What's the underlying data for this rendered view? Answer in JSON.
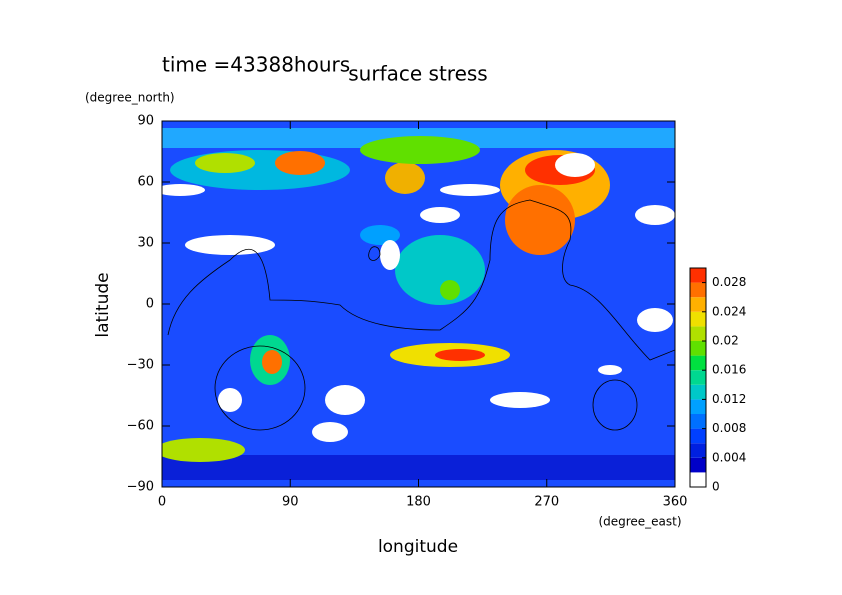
{
  "chart_data": {
    "type": "contour",
    "title": "surface stress",
    "subtitle": "time =43388hours",
    "x_label": "longitude",
    "x_unit": "(degree_east)",
    "y_label": "latitude",
    "y_unit": "(degree_north)",
    "xlim": [
      0,
      360
    ],
    "xticks": [
      0,
      90,
      180,
      270,
      360
    ],
    "ylim": [
      -90,
      90
    ],
    "yticks": [
      {
        "value": -90,
        "label": "−90"
      },
      {
        "value": -60,
        "label": "−60"
      },
      {
        "value": -30,
        "label": "−30"
      },
      0,
      30,
      60,
      90
    ],
    "colorbar": {
      "lim": [
        0,
        0.03
      ],
      "ticks": [
        0,
        0.004,
        0.008,
        0.012,
        0.016,
        0.02,
        0.024,
        0.028
      ],
      "colors": [
        "#ffffff",
        "#0000c8",
        "#0020e0",
        "#0040ff",
        "#0070ff",
        "#00a0ff",
        "#00c8c8",
        "#00d890",
        "#00e040",
        "#60e000",
        "#b0e000",
        "#f0e000",
        "#ffb000",
        "#ff7000",
        "#ff3000"
      ]
    }
  }
}
